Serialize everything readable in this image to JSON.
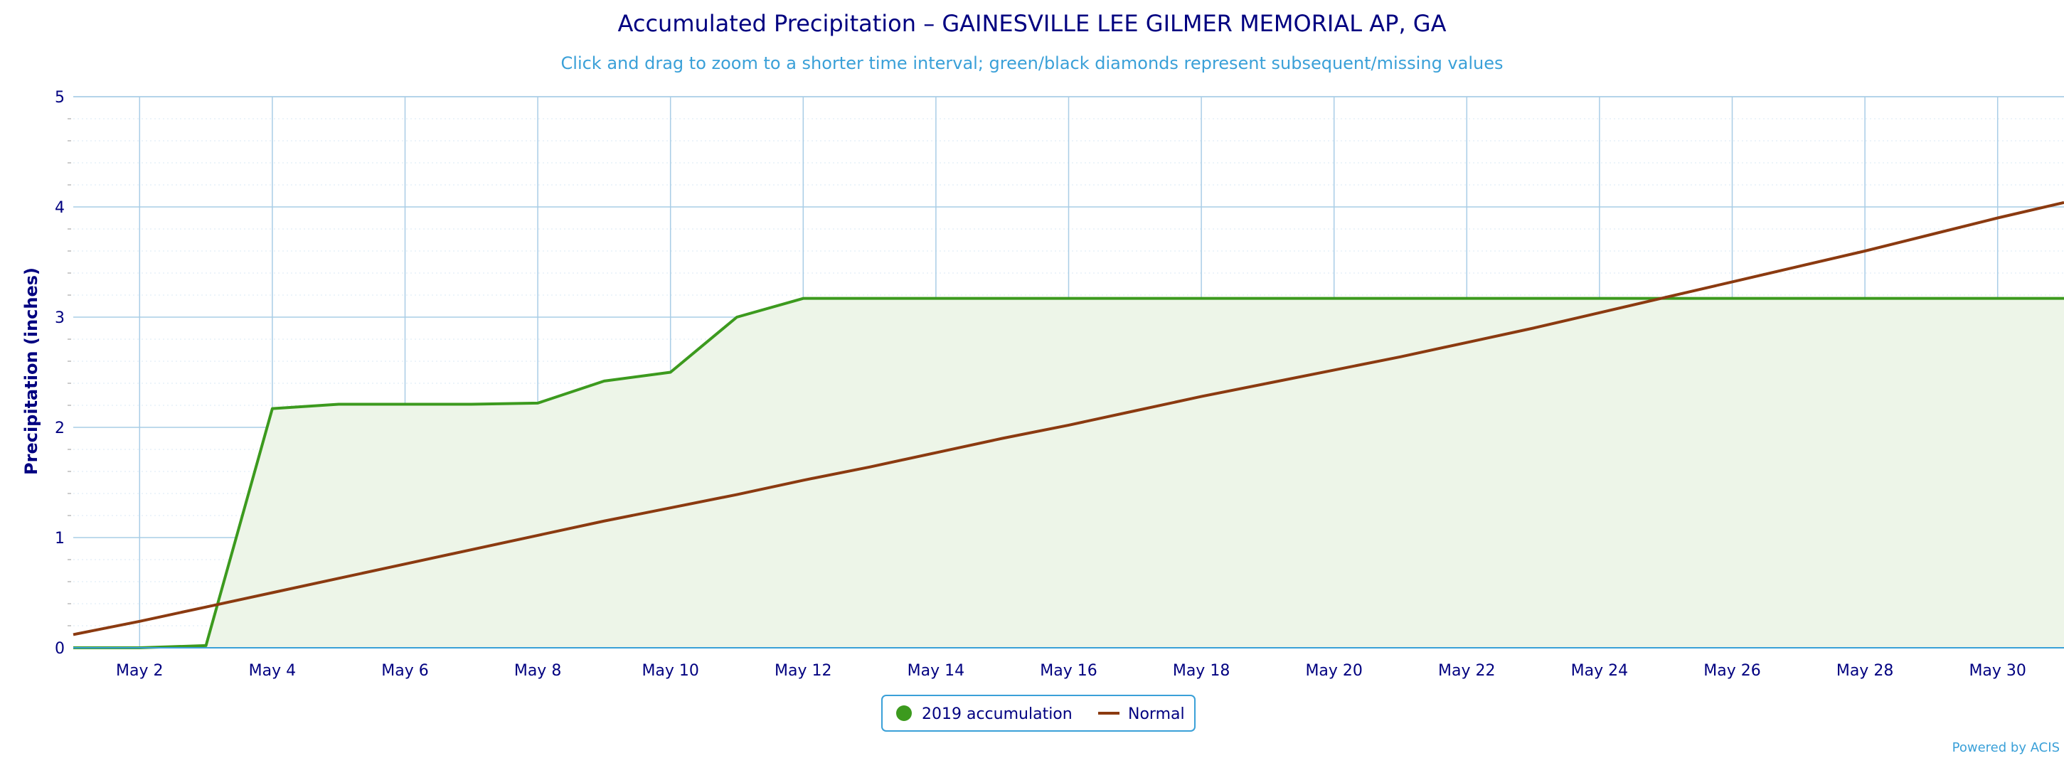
{
  "chart_data": {
    "type": "area",
    "title": "Accumulated Precipitation – GAINESVILLE LEE GILMER MEMORIAL AP, GA",
    "subtitle": "Click and drag to zoom to a shorter time interval; green/black diamonds represent subsequent/missing values",
    "ylabel": "Precipitation (inches)",
    "xlabel": "",
    "ylim": [
      0,
      5
    ],
    "xlim": [
      1,
      31
    ],
    "yticks": [
      0,
      1,
      2,
      3,
      4,
      5
    ],
    "xticks": [
      2,
      4,
      6,
      8,
      10,
      12,
      14,
      16,
      18,
      20,
      22,
      24,
      26,
      28,
      30
    ],
    "xtick_labels": [
      "May 2",
      "May 4",
      "May 6",
      "May 8",
      "May 10",
      "May 12",
      "May 14",
      "May 16",
      "May 18",
      "May 20",
      "May 22",
      "May 24",
      "May 26",
      "May 28",
      "May 30"
    ],
    "grid": true,
    "legend_position": "bottom-center",
    "credit": "Powered by ACIS",
    "series": [
      {
        "name": "2019 accumulation",
        "type": "area",
        "color": "#3c9a1e",
        "fill": "#edf5e8",
        "x": [
          1,
          2,
          3,
          4,
          5,
          6,
          7,
          8,
          9,
          10,
          11,
          12,
          13,
          14,
          15,
          16,
          17,
          18,
          19,
          20,
          21,
          22,
          23,
          24,
          25,
          26,
          27,
          28,
          29,
          30,
          31
        ],
        "values": [
          0.0,
          0.0,
          0.02,
          2.17,
          2.21,
          2.21,
          2.21,
          2.22,
          2.42,
          2.5,
          3.0,
          3.17,
          3.17,
          3.17,
          3.17,
          3.17,
          3.17,
          3.17,
          3.17,
          3.17,
          3.17,
          3.17,
          3.17,
          3.17,
          3.17,
          3.17,
          3.17,
          3.17,
          3.17,
          3.17,
          3.17
        ]
      },
      {
        "name": "Normal",
        "type": "line",
        "color": "#8b3a10",
        "x": [
          1,
          2,
          3,
          4,
          5,
          6,
          7,
          8,
          9,
          10,
          11,
          12,
          13,
          14,
          15,
          16,
          17,
          18,
          19,
          20,
          21,
          22,
          23,
          24,
          25,
          26,
          27,
          28,
          29,
          30,
          31
        ],
        "values": [
          0.12,
          0.24,
          0.37,
          0.5,
          0.63,
          0.76,
          0.89,
          1.02,
          1.15,
          1.27,
          1.39,
          1.52,
          1.64,
          1.77,
          1.9,
          2.02,
          2.15,
          2.28,
          2.4,
          2.52,
          2.64,
          2.77,
          2.9,
          3.04,
          3.18,
          3.32,
          3.46,
          3.6,
          3.75,
          3.9,
          4.04
        ]
      }
    ]
  }
}
